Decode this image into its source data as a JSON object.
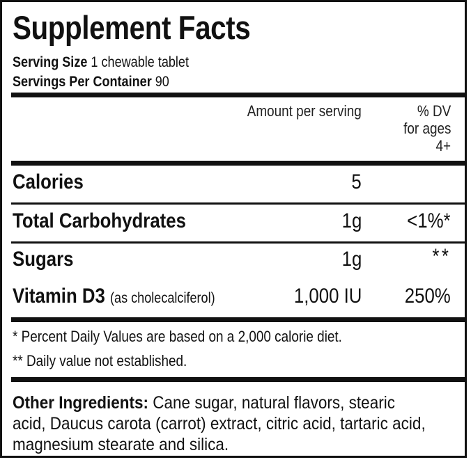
{
  "title": "Supplement Facts",
  "serving_size": {
    "label": "Serving Size",
    "value": "1 chewable tablet"
  },
  "servings_per_container": {
    "label": "Servings Per Container",
    "value": "90"
  },
  "header": {
    "amount": "Amount per serving",
    "dv_line1": "% DV",
    "dv_line2": "for ages",
    "dv_line3": "4+"
  },
  "rows": [
    {
      "name": "Calories",
      "note": "",
      "amount": "5",
      "dv": ""
    },
    {
      "name": "Total Carbohydrates",
      "note": "",
      "amount": "1g",
      "dv": "<1%*"
    },
    {
      "name": "Sugars",
      "note": "",
      "amount": "1g",
      "dv": "**"
    },
    {
      "name": "Vitamin D3",
      "note": "(as cholecalciferol)",
      "amount": "1,000 IU",
      "dv": "250%"
    }
  ],
  "footnotes": [
    "* Percent Daily Values are based on a 2,000 calorie diet.",
    "** Daily value not established."
  ],
  "other_ingredients": {
    "label": "Other Ingredients:",
    "text": "Cane sugar, natural flavors, stearic acid, Daucus carota (carrot) extract, citric acid, tartaric acid, magnesium stearate and silica."
  }
}
